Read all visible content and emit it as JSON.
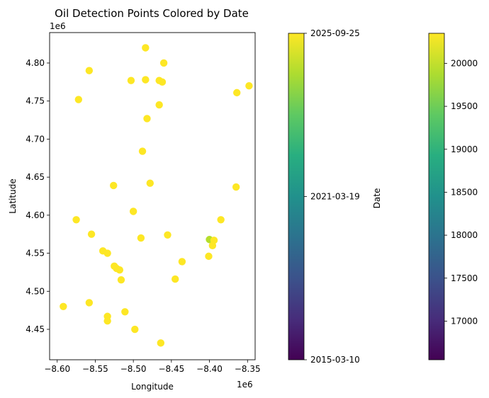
{
  "chart_data": {
    "type": "scatter",
    "title": "Oil Detection Points Colored by Date",
    "xlabel": "Longitude",
    "ylabel": "Latitude",
    "x_offset_label": "1e6",
    "y_offset_label": "1e6",
    "xlim": [
      -8.61,
      -8.34
    ],
    "ylim": [
      4.41,
      4.84
    ],
    "x_ticks": [
      -8.6,
      -8.55,
      -8.5,
      -8.45,
      -8.4,
      -8.35
    ],
    "x_tick_labels": [
      "−8.60",
      "−8.55",
      "−8.50",
      "−8.45",
      "−8.40",
      "−8.35"
    ],
    "y_ticks": [
      4.45,
      4.5,
      4.55,
      4.6,
      4.65,
      4.7,
      4.75,
      4.8
    ],
    "y_tick_labels": [
      "4.45",
      "4.50",
      "4.55",
      "4.60",
      "4.65",
      "4.70",
      "4.75",
      "4.80"
    ],
    "marker_color": "#fde725",
    "outlier_color": "#b5de2b",
    "colormap": "viridis",
    "points": [
      {
        "x": -8.484,
        "y": 4.82
      },
      {
        "x": -8.46,
        "y": 4.8
      },
      {
        "x": -8.558,
        "y": 4.79
      },
      {
        "x": -8.503,
        "y": 4.777
      },
      {
        "x": -8.484,
        "y": 4.778
      },
      {
        "x": -8.466,
        "y": 4.777
      },
      {
        "x": -8.462,
        "y": 4.775
      },
      {
        "x": -8.348,
        "y": 4.77
      },
      {
        "x": -8.364,
        "y": 4.761
      },
      {
        "x": -8.572,
        "y": 4.752
      },
      {
        "x": -8.466,
        "y": 4.745
      },
      {
        "x": -8.482,
        "y": 4.727
      },
      {
        "x": -8.488,
        "y": 4.684
      },
      {
        "x": -8.478,
        "y": 4.642
      },
      {
        "x": -8.526,
        "y": 4.639
      },
      {
        "x": -8.365,
        "y": 4.637
      },
      {
        "x": -8.5,
        "y": 4.605
      },
      {
        "x": -8.575,
        "y": 4.594
      },
      {
        "x": -8.385,
        "y": 4.594
      },
      {
        "x": -8.555,
        "y": 4.575
      },
      {
        "x": -8.455,
        "y": 4.574
      },
      {
        "x": -8.49,
        "y": 4.57
      },
      {
        "x": -8.4,
        "y": 4.568,
        "outlier": true
      },
      {
        "x": -8.394,
        "y": 4.567
      },
      {
        "x": -8.396,
        "y": 4.56
      },
      {
        "x": -8.54,
        "y": 4.553
      },
      {
        "x": -8.534,
        "y": 4.55
      },
      {
        "x": -8.401,
        "y": 4.546
      },
      {
        "x": -8.436,
        "y": 4.539
      },
      {
        "x": -8.525,
        "y": 4.533
      },
      {
        "x": -8.522,
        "y": 4.53
      },
      {
        "x": -8.518,
        "y": 4.528
      },
      {
        "x": -8.516,
        "y": 4.515
      },
      {
        "x": -8.445,
        "y": 4.516
      },
      {
        "x": -8.558,
        "y": 4.485
      },
      {
        "x": -8.592,
        "y": 4.48
      },
      {
        "x": -8.511,
        "y": 4.473
      },
      {
        "x": -8.534,
        "y": 4.467
      },
      {
        "x": -8.534,
        "y": 4.461
      },
      {
        "x": -8.498,
        "y": 4.45
      },
      {
        "x": -8.464,
        "y": 4.432
      }
    ],
    "colorbars": [
      {
        "label": "Date",
        "ticks": [
          0,
          0.5,
          1
        ],
        "tick_labels": [
          "2015-03-10",
          "2021-03-19",
          "2025-09-25"
        ]
      },
      {
        "label": "",
        "range": [
          16550,
          20350
        ],
        "ticks": [
          17000,
          17500,
          18000,
          18500,
          19000,
          19500,
          20000
        ],
        "tick_labels": [
          "17000",
          "17500",
          "18000",
          "18500",
          "19000",
          "19500",
          "20000"
        ]
      }
    ]
  }
}
